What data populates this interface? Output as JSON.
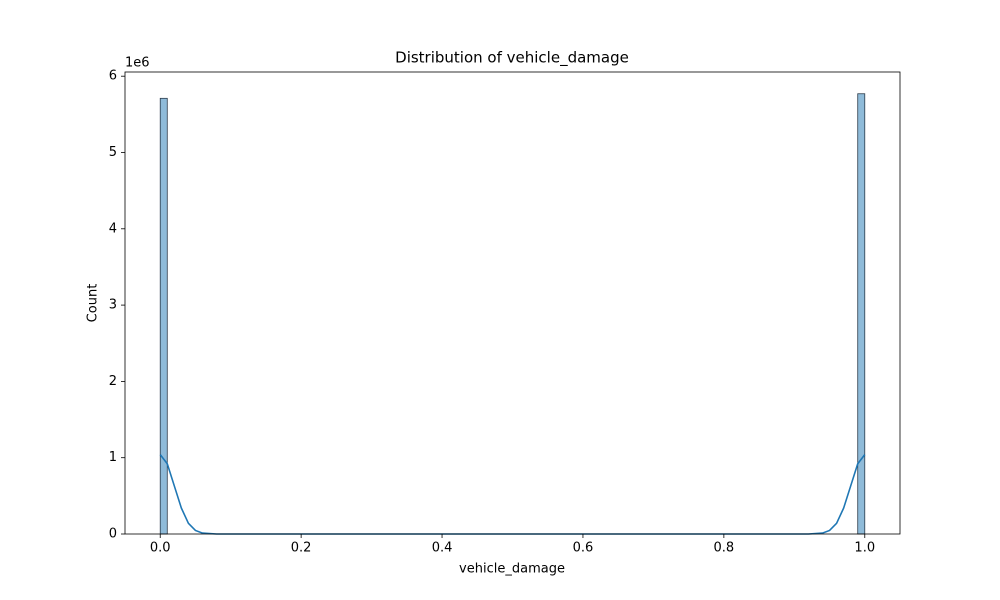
{
  "chart_data": {
    "type": "histogram",
    "title": "Distribution of vehicle_damage",
    "x_label": "vehicle_damage",
    "y_label": "Count",
    "y_offset_label": "1e6",
    "bins": [
      0,
      0.01,
      0.02,
      0.03,
      0.04,
      0.05,
      0.06,
      0.07,
      0.08,
      0.09,
      0.1,
      0.11,
      0.12,
      0.13,
      0.14,
      0.15,
      0.16,
      0.17,
      0.18,
      0.19,
      0.2,
      0.21,
      0.22,
      0.23,
      0.24,
      0.25,
      0.26,
      0.27,
      0.28,
      0.29,
      0.3,
      0.31,
      0.32,
      0.33,
      0.34,
      0.35,
      0.36,
      0.37,
      0.38,
      0.39,
      0.4,
      0.41,
      0.42,
      0.43,
      0.44,
      0.45,
      0.46,
      0.47,
      0.48,
      0.49,
      0.5,
      0.51,
      0.52,
      0.53,
      0.54,
      0.55,
      0.56,
      0.57,
      0.58,
      0.59,
      0.6,
      0.61,
      0.62,
      0.63,
      0.64,
      0.65,
      0.66,
      0.67,
      0.68,
      0.69,
      0.7,
      0.71,
      0.72,
      0.73,
      0.74,
      0.75,
      0.76,
      0.77,
      0.78,
      0.79,
      0.8,
      0.81,
      0.82,
      0.83,
      0.84,
      0.85,
      0.86,
      0.87,
      0.88,
      0.89,
      0.9,
      0.91,
      0.92,
      0.93,
      0.94,
      0.95,
      0.96,
      0.97,
      0.98,
      0.99,
      1
    ],
    "counts": [
      5710000,
      0,
      0,
      0,
      0,
      0,
      0,
      0,
      0,
      0,
      0,
      0,
      0,
      0,
      0,
      0,
      0,
      0,
      0,
      0,
      0,
      0,
      0,
      0,
      0,
      0,
      0,
      0,
      0,
      0,
      0,
      0,
      0,
      0,
      0,
      0,
      0,
      0,
      0,
      0,
      0,
      0,
      0,
      0,
      0,
      0,
      0,
      0,
      0,
      0,
      0,
      0,
      0,
      0,
      0,
      0,
      0,
      0,
      0,
      0,
      0,
      0,
      0,
      0,
      0,
      0,
      0,
      0,
      0,
      0,
      0,
      0,
      0,
      0,
      0,
      0,
      0,
      0,
      0,
      0,
      0,
      0,
      0,
      0,
      0,
      0,
      0,
      0,
      0,
      0,
      0,
      0,
      0,
      0,
      0,
      0,
      0,
      0,
      0,
      5770000
    ],
    "color": "#1f77b4",
    "kde": {
      "x": [
        0,
        0.01,
        0.02,
        0.03,
        0.04,
        0.05,
        0.06,
        0.08,
        0.2,
        0.5,
        0.8,
        0.92,
        0.94,
        0.95,
        0.96,
        0.97,
        0.98,
        0.99,
        1
      ],
      "values": [
        1040000,
        920000,
        630000,
        340000,
        140000,
        46000,
        12000,
        0,
        0,
        0,
        0,
        0,
        12000,
        46000,
        140000,
        340000,
        630000,
        920000,
        1040000
      ],
      "color": "#1f77b4"
    },
    "xlim": [
      -0.05,
      1.05
    ],
    "ylim": [
      0,
      6055000
    ],
    "xticks": [
      {
        "value": 0,
        "label": "0.0"
      },
      0.2,
      0.4,
      0.6,
      0.8,
      {
        "value": 1,
        "label": "1.0"
      }
    ],
    "yticks": [
      0,
      {
        "value": 1000000,
        "label": "1"
      },
      {
        "value": 2000000,
        "label": "2"
      },
      {
        "value": 3000000,
        "label": "3"
      },
      {
        "value": 4000000,
        "label": "4"
      },
      {
        "value": 5000000,
        "label": "5"
      },
      {
        "value": 6000000,
        "label": "6"
      }
    ]
  }
}
